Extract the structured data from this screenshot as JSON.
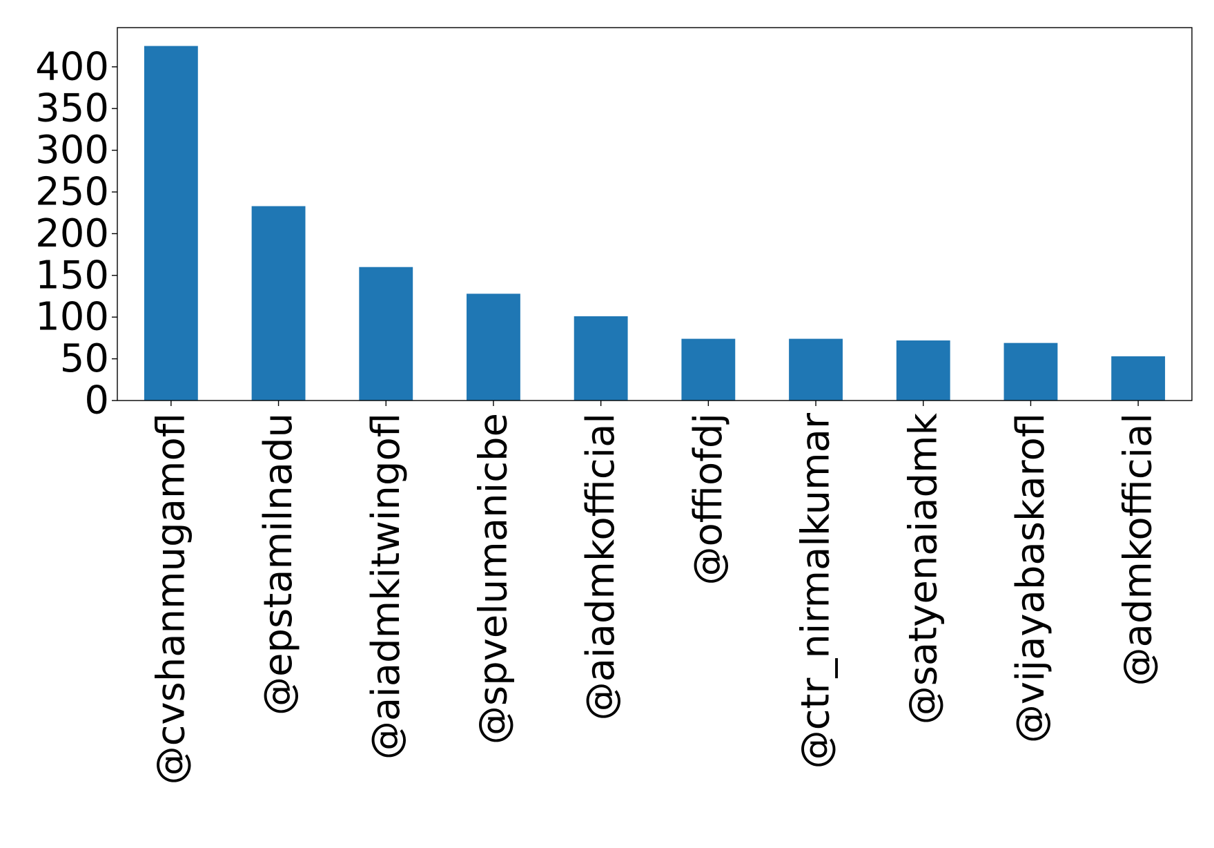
{
  "chart_data": {
    "type": "bar",
    "title": "",
    "xlabel": "",
    "ylabel": "",
    "categories": [
      "@cvshanmugamofl",
      "@epstamilnadu",
      "@aiadmkitwingofl",
      "@spvelumanicbe",
      "@aiadmkofficial",
      "@offiofdj",
      "@ctr_nirmalkumar",
      "@satyenaiadmk",
      "@vijayabaskarofl",
      "@admkofficial"
    ],
    "values": [
      425,
      233,
      160,
      128,
      101,
      74,
      74,
      72,
      69,
      53
    ],
    "ylim": [
      0,
      447
    ],
    "yticks": [
      0,
      50,
      100,
      150,
      200,
      250,
      300,
      350,
      400
    ],
    "ytick_labels": [
      "0",
      "50",
      "100",
      "150",
      "200",
      "250",
      "300",
      "350",
      "400"
    ],
    "bar_color": "#1f77b4",
    "grid": false,
    "legend": "none"
  }
}
